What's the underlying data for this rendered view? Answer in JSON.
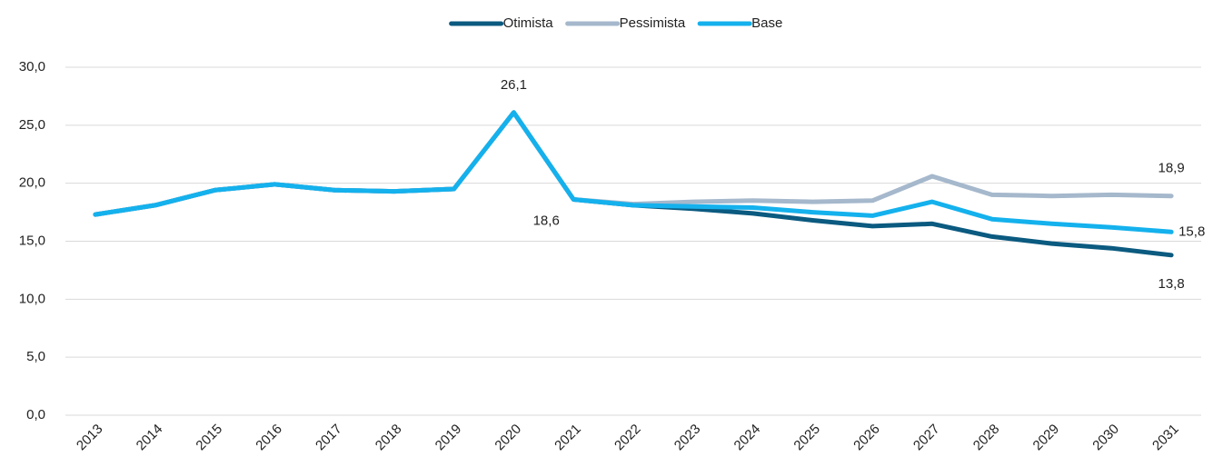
{
  "chart_data": {
    "type": "line",
    "categories": [
      "2013",
      "2014",
      "2015",
      "2016",
      "2017",
      "2018",
      "2019",
      "2020",
      "2021",
      "2022",
      "2023",
      "2024",
      "2025",
      "2026",
      "2027",
      "2028",
      "2029",
      "2030",
      "2031"
    ],
    "series": [
      {
        "name": "Otimista",
        "color": "#0b5a80",
        "values": [
          17.3,
          18.1,
          19.4,
          19.9,
          19.4,
          19.3,
          19.5,
          26.1,
          18.6,
          18.1,
          17.8,
          17.4,
          16.8,
          16.3,
          16.5,
          15.4,
          14.8,
          14.4,
          13.8
        ],
        "value_labels": [
          null,
          null,
          null,
          null,
          null,
          null,
          null,
          null,
          null,
          null,
          null,
          null,
          null,
          null,
          null,
          null,
          null,
          null,
          "13,8"
        ]
      },
      {
        "name": "Pessimista",
        "color": "#a5b8cc",
        "values": [
          17.3,
          18.1,
          19.4,
          19.9,
          19.4,
          19.3,
          19.5,
          26.1,
          18.6,
          18.2,
          18.4,
          18.5,
          18.4,
          18.5,
          20.6,
          19.0,
          18.9,
          19.0,
          18.9
        ],
        "value_labels": [
          null,
          null,
          null,
          null,
          null,
          null,
          null,
          null,
          null,
          null,
          null,
          null,
          null,
          null,
          null,
          null,
          null,
          null,
          "18,9"
        ]
      },
      {
        "name": "Base",
        "color": "#14b1ed",
        "values": [
          17.3,
          18.1,
          19.4,
          19.9,
          19.4,
          19.3,
          19.5,
          26.1,
          18.6,
          18.1,
          18.0,
          17.9,
          17.5,
          17.2,
          18.4,
          16.9,
          16.5,
          16.2,
          15.8
        ],
        "value_labels": [
          null,
          null,
          null,
          null,
          null,
          null,
          null,
          "26,1",
          "18,6",
          null,
          null,
          null,
          null,
          null,
          null,
          null,
          null,
          null,
          "15,8"
        ]
      }
    ],
    "ylim": [
      0,
      30
    ],
    "yticks": [
      {
        "value": 0,
        "label": "0,0"
      },
      {
        "value": 5,
        "label": "5,0"
      },
      {
        "value": 10,
        "label": "10,0"
      },
      {
        "value": 15,
        "label": "15,0"
      },
      {
        "value": 20,
        "label": "20,0"
      },
      {
        "value": 25,
        "label": "25,0"
      },
      {
        "value": 30,
        "label": "30,0"
      }
    ],
    "grid": true,
    "legend": "top"
  }
}
